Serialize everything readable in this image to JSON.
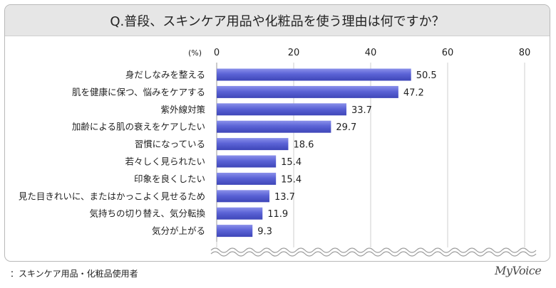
{
  "title": "Q.普段、スキンケア用品や化粧品を使う理由は何ですか？",
  "footnote": "：スキンケア用品・化粧品使用者",
  "brand": "MyVoice",
  "chart_data": {
    "type": "bar",
    "orientation": "horizontal",
    "title": "Q.普段、スキンケア用品や化粧品を使う理由は何ですか？",
    "unit_label": "(%)",
    "xlim": [
      0,
      80
    ],
    "xticks": [
      0,
      20,
      40,
      60,
      80
    ],
    "grid": true,
    "bar_color": "#5b63d6",
    "categories": [
      "身だしなみを整える",
      "肌を健康に保つ、悩みをケアする",
      "紫外線対策",
      "加齢による肌の衰えをケアしたい",
      "習慣になっている",
      "若々しく見られたい",
      "印象を良くしたい",
      "見た目きれいに、またはかっこよく見せるため",
      "気持ちの切り替え、気分転換",
      "気分が上がる"
    ],
    "values": [
      50.5,
      47.2,
      33.7,
      29.7,
      18.6,
      15.4,
      15.4,
      13.7,
      11.9,
      9.3
    ],
    "value_labels": [
      "50.5",
      "47.2",
      "33.7",
      "29.7",
      "18.6",
      "15.4",
      "15.4",
      "13.7",
      "11.9",
      "9.3"
    ]
  }
}
